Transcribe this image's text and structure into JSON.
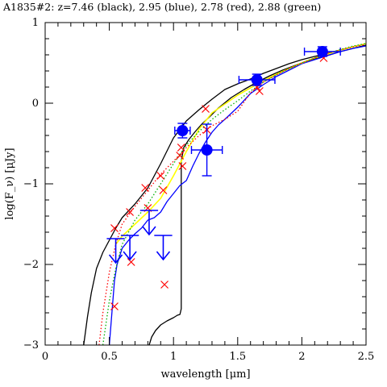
{
  "chart_data": {
    "type": "scatter",
    "title": "A1835#2: z=7.46 (black), 2.95 (blue), 2.78 (red), 2.88 (green)",
    "xlabel": "wavelength [μm]",
    "ylabel": "log(F_ν) [μJy]",
    "xlim": [
      0,
      2.5
    ],
    "ylim": [
      -3,
      1
    ],
    "x_ticks": [
      0,
      0.5,
      1,
      1.5,
      2,
      2.5
    ],
    "x_tick_labels": [
      "0",
      "0.5",
      "1",
      "1.5",
      "2",
      "2.5"
    ],
    "y_ticks": [
      -3,
      -2,
      -1,
      0,
      1
    ],
    "y_tick_labels": [
      "−3",
      "−2",
      "−1",
      "0",
      "1"
    ],
    "grid": false,
    "colors": {
      "black": "#000000",
      "blue": "#0000ff",
      "red": "#ff0000",
      "green": "#00b000",
      "yellow": "#ffff00"
    },
    "detections": [
      {
        "x": 1.07,
        "y": -0.34,
        "xerr": 0.06,
        "yerr": 0.09
      },
      {
        "x": 1.26,
        "y": -0.58,
        "xerr": 0.12,
        "yerr": 0.32
      },
      {
        "x": 1.65,
        "y": 0.29,
        "xerr": 0.14,
        "yerr": 0.07
      },
      {
        "x": 2.16,
        "y": 0.64,
        "xerr": 0.14,
        "yerr": 0.06
      }
    ],
    "upper_limits": [
      {
        "x": 0.55,
        "y": -1.68,
        "xerr": 0.07
      },
      {
        "x": 0.66,
        "y": -1.64,
        "xerr": 0.07
      },
      {
        "x": 0.81,
        "y": -1.33,
        "xerr": 0.07
      },
      {
        "x": 0.92,
        "y": -1.64,
        "xerr": 0.07
      }
    ],
    "model_points_red": [
      {
        "x": 0.54,
        "y": -2.52
      },
      {
        "x": 0.54,
        "y": -1.55
      },
      {
        "x": 0.66,
        "y": -1.35
      },
      {
        "x": 0.67,
        "y": -1.97
      },
      {
        "x": 0.78,
        "y": -1.05
      },
      {
        "x": 0.8,
        "y": -1.3
      },
      {
        "x": 0.9,
        "y": -0.9
      },
      {
        "x": 0.92,
        "y": -1.08
      },
      {
        "x": 0.93,
        "y": -2.25
      },
      {
        "x": 1.05,
        "y": -0.65
      },
      {
        "x": 1.06,
        "y": -0.55
      },
      {
        "x": 1.07,
        "y": -0.78
      },
      {
        "x": 1.25,
        "y": -0.07
      },
      {
        "x": 1.26,
        "y": -0.33
      },
      {
        "x": 1.65,
        "y": 0.2
      },
      {
        "x": 1.67,
        "y": 0.15
      },
      {
        "x": 2.17,
        "y": 0.56
      }
    ],
    "series": [
      {
        "color": "black",
        "style": "solid",
        "x": [
          0.3,
          0.33,
          0.36,
          0.4,
          0.45,
          0.5,
          0.55,
          0.6,
          0.7,
          0.8,
          0.9,
          1.0,
          1.1,
          1.2,
          1.3,
          1.4,
          1.5,
          1.6,
          1.7,
          1.8,
          1.9,
          2.0,
          2.2,
          2.4,
          2.5
        ],
        "y": [
          -3.0,
          -2.65,
          -2.35,
          -2.05,
          -1.85,
          -1.7,
          -1.55,
          -1.42,
          -1.25,
          -1.05,
          -0.75,
          -0.43,
          -0.22,
          -0.08,
          0.05,
          0.17,
          0.24,
          0.3,
          0.37,
          0.43,
          0.49,
          0.54,
          0.62,
          0.7,
          0.74
        ]
      },
      {
        "color": "black",
        "style": "solid",
        "x": [
          0.81,
          0.83,
          0.86,
          0.9,
          0.95,
          1.0,
          1.03,
          1.05,
          1.06,
          1.06,
          1.08,
          1.12,
          1.17,
          1.22,
          1.28,
          1.35,
          1.45,
          1.55,
          1.65,
          1.75,
          1.85,
          2.0,
          2.15,
          2.3,
          2.5
        ],
        "y": [
          -3.0,
          -2.9,
          -2.82,
          -2.75,
          -2.7,
          -2.66,
          -2.63,
          -2.62,
          -2.55,
          -0.72,
          -0.55,
          -0.45,
          -0.35,
          -0.26,
          -0.17,
          -0.06,
          0.07,
          0.17,
          0.26,
          0.34,
          0.41,
          0.5,
          0.57,
          0.64,
          0.72
        ]
      },
      {
        "color": "blue",
        "style": "solid",
        "x": [
          0.5,
          0.52,
          0.54,
          0.56,
          0.6,
          0.65,
          0.7,
          0.75,
          0.8,
          0.85,
          0.9,
          0.95,
          1.0,
          1.05,
          1.1,
          1.15,
          1.2,
          1.25,
          1.3,
          1.35,
          1.4,
          1.5,
          1.6,
          1.7,
          1.8,
          1.9,
          2.0,
          2.1,
          2.2,
          2.3,
          2.4,
          2.5
        ],
        "y": [
          -3.0,
          -2.6,
          -2.2,
          -2.0,
          -1.8,
          -1.7,
          -1.62,
          -1.55,
          -1.45,
          -1.42,
          -1.35,
          -1.22,
          -1.12,
          -1.02,
          -0.96,
          -0.78,
          -0.62,
          -0.48,
          -0.36,
          -0.27,
          -0.2,
          -0.05,
          0.12,
          0.23,
          0.33,
          0.41,
          0.49,
          0.54,
          0.59,
          0.64,
          0.68,
          0.71
        ]
      },
      {
        "color": "yellow",
        "style": "solid",
        "x": [
          0.55,
          0.6,
          0.7,
          0.8,
          0.9,
          1.0,
          1.1,
          1.2,
          1.3,
          1.4,
          1.5,
          1.6,
          1.7,
          1.8,
          1.9,
          2.0,
          2.1,
          2.2,
          2.3,
          2.4,
          2.5
        ],
        "y": [
          -1.75,
          -1.65,
          -1.5,
          -1.35,
          -1.18,
          -0.9,
          -0.6,
          -0.32,
          -0.12,
          -0.01,
          0.1,
          0.19,
          0.28,
          0.36,
          0.43,
          0.5,
          0.56,
          0.61,
          0.66,
          0.7,
          0.74
        ]
      },
      {
        "color": "red",
        "style": "dotted",
        "x": [
          0.42,
          0.45,
          0.5,
          0.55,
          0.6,
          0.7,
          0.8,
          0.9,
          1.0,
          1.1,
          1.2,
          1.3,
          1.4,
          1.5,
          1.6,
          1.7,
          1.8,
          1.9,
          2.0,
          2.2,
          2.4,
          2.5
        ],
        "y": [
          -3.0,
          -2.6,
          -2.1,
          -1.75,
          -1.5,
          -1.28,
          -1.08,
          -0.88,
          -0.72,
          -0.55,
          -0.4,
          -0.28,
          -0.2,
          -0.1,
          0.13,
          0.26,
          0.35,
          0.43,
          0.5,
          0.62,
          0.7,
          0.73
        ]
      },
      {
        "color": "green",
        "style": "dotted",
        "x": [
          0.45,
          0.5,
          0.55,
          0.6,
          0.7,
          0.8,
          0.9,
          1.0,
          1.1,
          1.2,
          1.3,
          1.4,
          1.5,
          1.6,
          1.7,
          1.8,
          1.9,
          2.0,
          2.2,
          2.4,
          2.5
        ],
        "y": [
          -3.0,
          -2.45,
          -2.05,
          -1.75,
          -1.45,
          -1.25,
          -1.0,
          -0.75,
          -0.52,
          -0.35,
          -0.2,
          -0.08,
          0.03,
          0.15,
          0.26,
          0.35,
          0.43,
          0.5,
          0.62,
          0.71,
          0.74
        ]
      }
    ]
  }
}
